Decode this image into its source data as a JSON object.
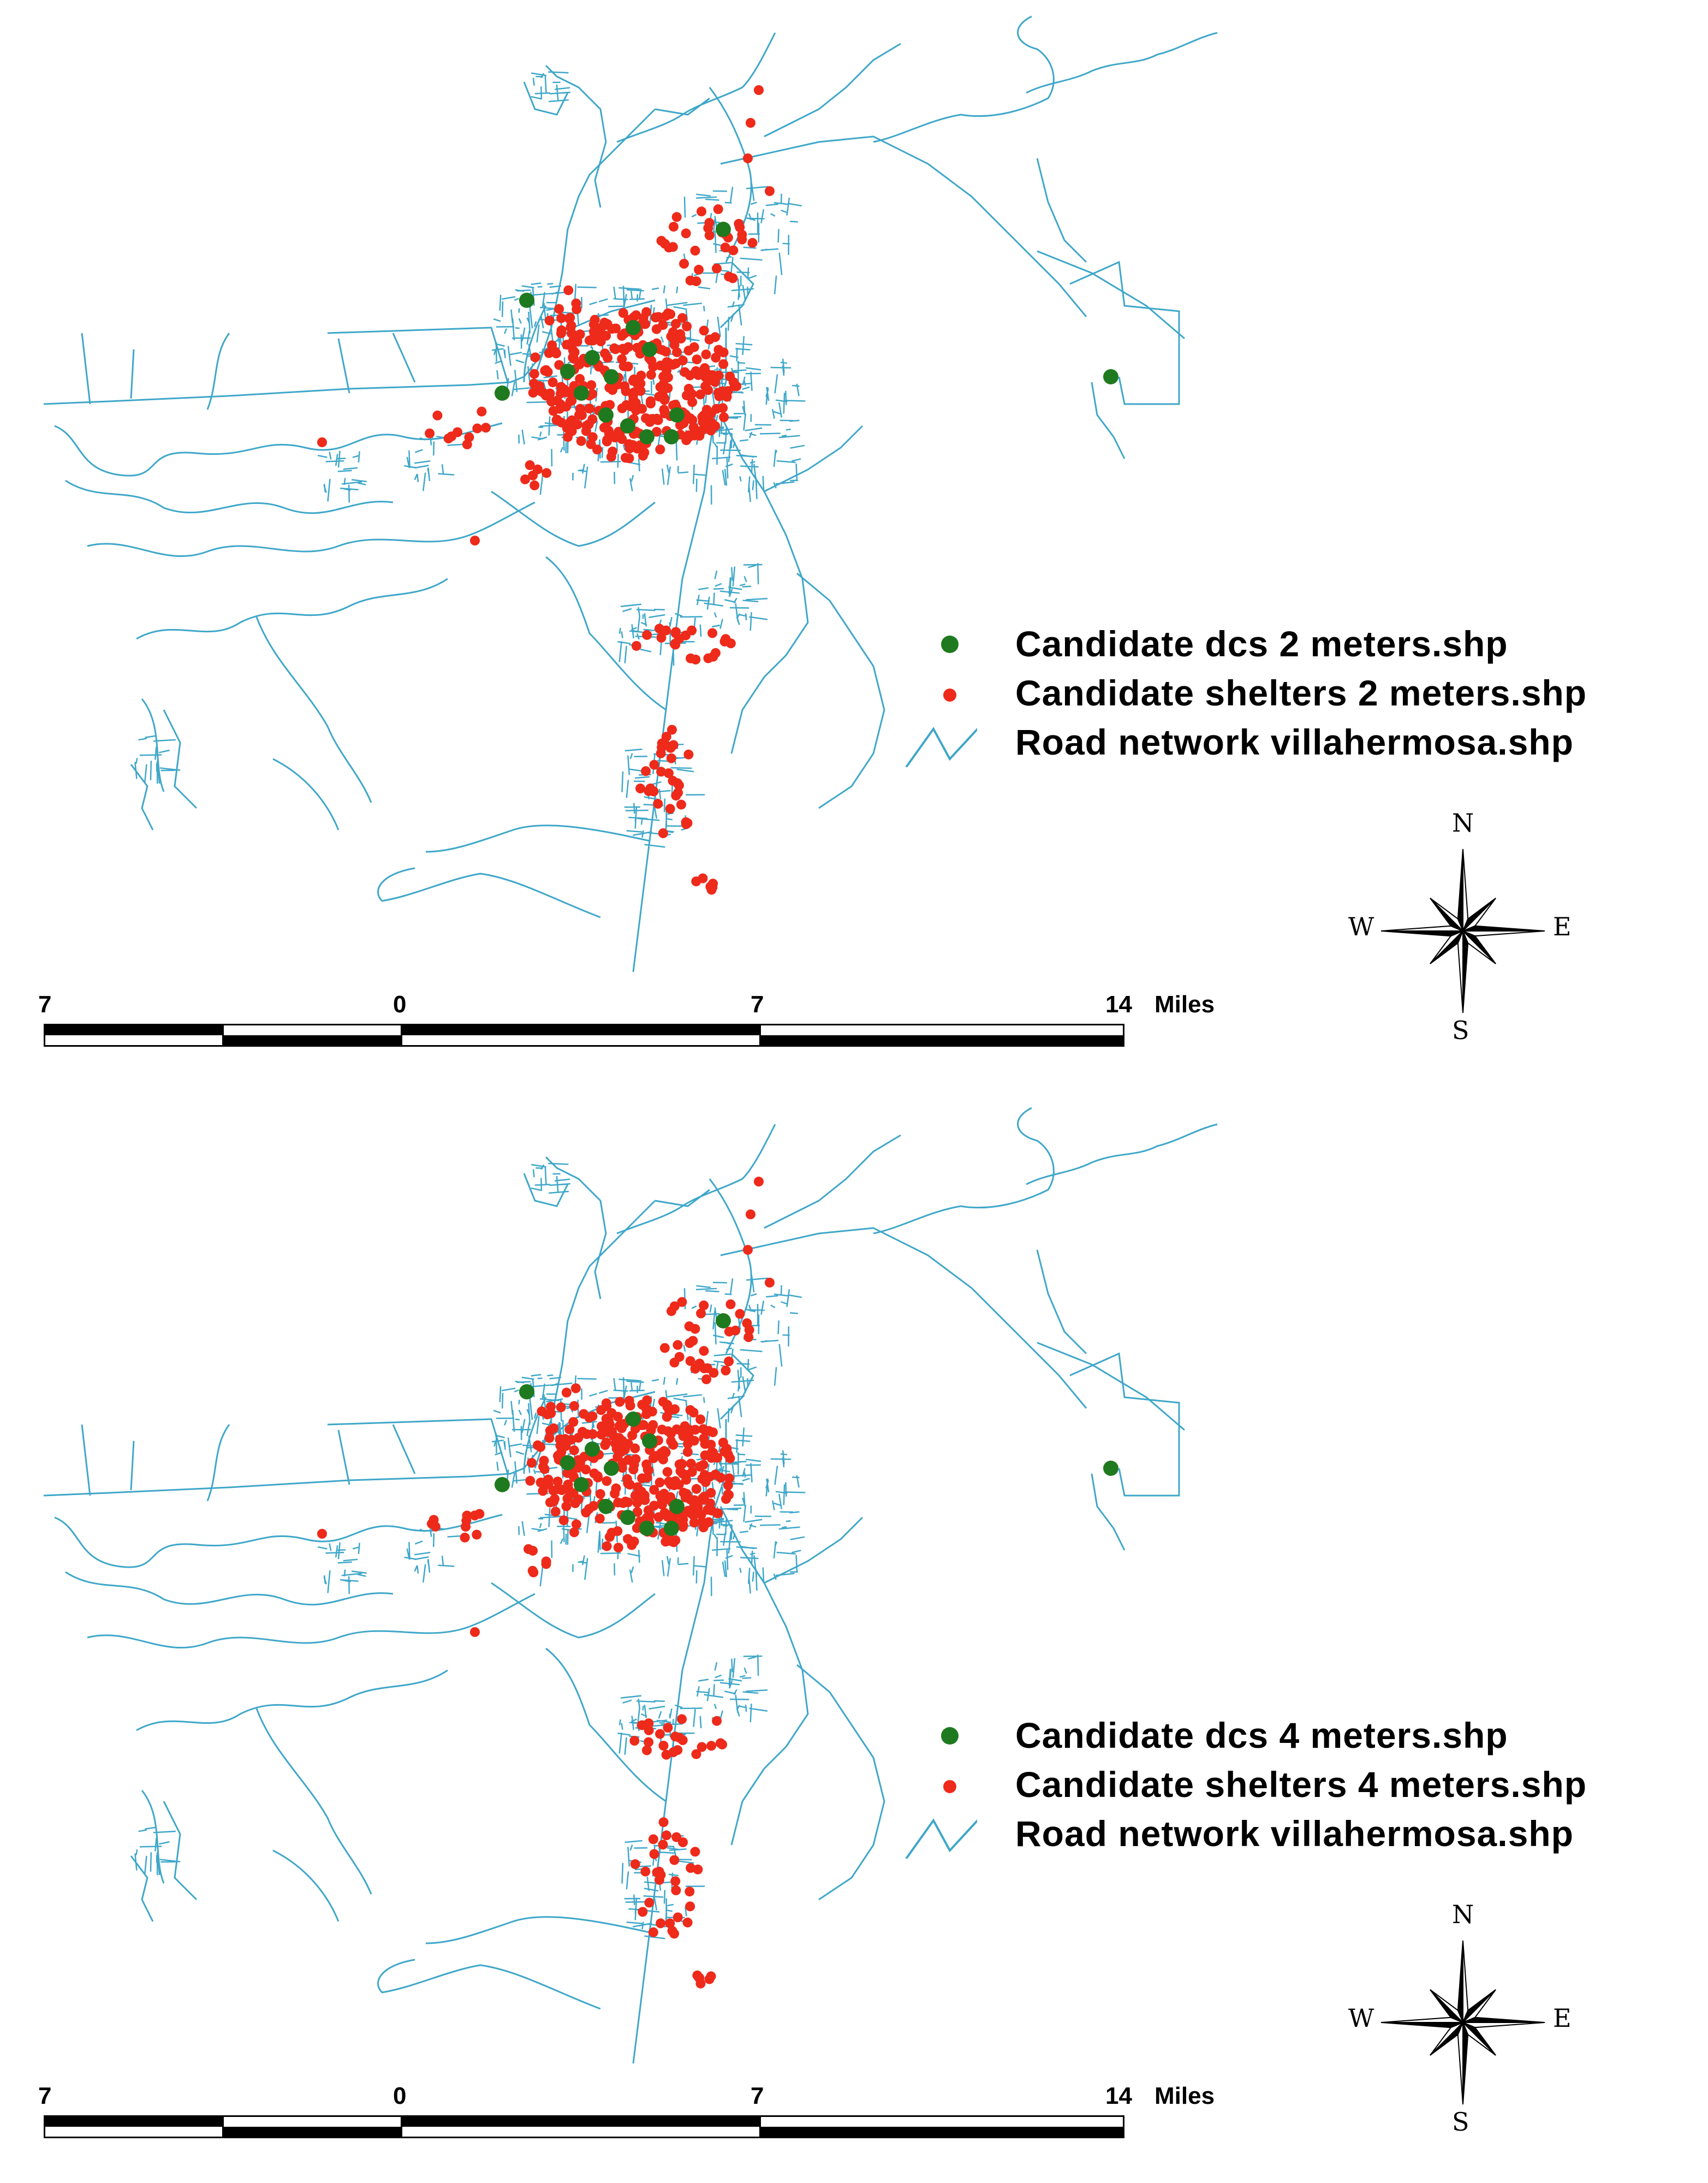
{
  "colors": {
    "road": "#3fa7c9",
    "dcs": "#1f7a1f",
    "shelter": "#ee2a1b",
    "text": "#000000"
  },
  "maps": [
    {
      "legend": [
        {
          "symbol": "green-dot",
          "label": "Candidate dcs 2 meters.shp"
        },
        {
          "symbol": "red-dot",
          "label": "Candidate shelters 2 meters.shp"
        },
        {
          "symbol": "line",
          "label": "Road network villahermosa.shp"
        }
      ],
      "compass": {
        "n": "N",
        "s": "S",
        "e": "E",
        "w": "W"
      },
      "scale": {
        "ticks": [
          "7",
          "0",
          "7",
          "14"
        ],
        "unit": "Miles"
      }
    },
    {
      "legend": [
        {
          "symbol": "green-dot",
          "label": "Candidate dcs 4 meters.shp"
        },
        {
          "symbol": "red-dot",
          "label": "Candidate shelters 4 meters.shp"
        },
        {
          "symbol": "line",
          "label": "Road network villahermosa.shp"
        }
      ],
      "compass": {
        "n": "N",
        "s": "S",
        "e": "E",
        "w": "W"
      },
      "scale": {
        "ticks": [
          "7",
          "0",
          "7",
          "14"
        ],
        "unit": "Miles"
      }
    }
  ]
}
